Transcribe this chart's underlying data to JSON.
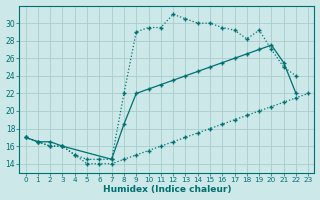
{
  "background_color": "#cce8e8",
  "grid_color": "#aacccc",
  "line_color": "#007070",
  "xlabel": "Humidex (Indice chaleur)",
  "ylim": [
    13,
    32
  ],
  "xlim": [
    -0.5,
    23.5
  ],
  "yticks": [
    14,
    16,
    18,
    20,
    22,
    24,
    26,
    28,
    30
  ],
  "xticks": [
    0,
    1,
    2,
    3,
    4,
    5,
    6,
    7,
    8,
    9,
    10,
    11,
    12,
    13,
    14,
    15,
    16,
    17,
    18,
    19,
    20,
    21,
    22,
    23
  ],
  "series_top_x": [
    0,
    1,
    2,
    3,
    4,
    5,
    6,
    7,
    8,
    9,
    10,
    11,
    12,
    13,
    14,
    15,
    16,
    17,
    18,
    19,
    20,
    21,
    22
  ],
  "series_top_y": [
    17,
    16.5,
    16,
    16,
    15,
    14.5,
    14.5,
    14.5,
    22,
    29,
    29.5,
    29.5,
    31,
    30.5,
    30,
    30,
    29.5,
    29.2,
    28.2,
    29.2,
    27,
    25,
    24
  ],
  "series_mid_x": [
    0,
    1,
    2,
    3,
    7,
    8,
    9,
    10,
    11,
    12,
    13,
    14,
    15,
    16,
    17,
    18,
    19,
    20,
    21,
    22
  ],
  "series_mid_y": [
    17,
    16.5,
    16.5,
    16,
    14.5,
    18.5,
    22,
    22.5,
    23,
    23.5,
    24,
    24.5,
    25,
    25.5,
    26,
    26.5,
    27,
    27.5,
    25.5,
    22
  ],
  "series_bot_x": [
    0,
    1,
    2,
    3,
    4,
    5,
    6,
    7,
    8,
    9,
    10,
    11,
    12,
    13,
    14,
    15,
    16,
    17,
    18,
    19,
    20,
    21,
    22,
    23
  ],
  "series_bot_y": [
    17,
    16.5,
    16,
    16,
    15,
    14,
    14,
    14,
    14.5,
    15,
    15.5,
    16,
    16.5,
    17,
    17.5,
    18,
    18.5,
    19,
    19.5,
    20,
    20.5,
    21,
    21.5,
    22
  ]
}
